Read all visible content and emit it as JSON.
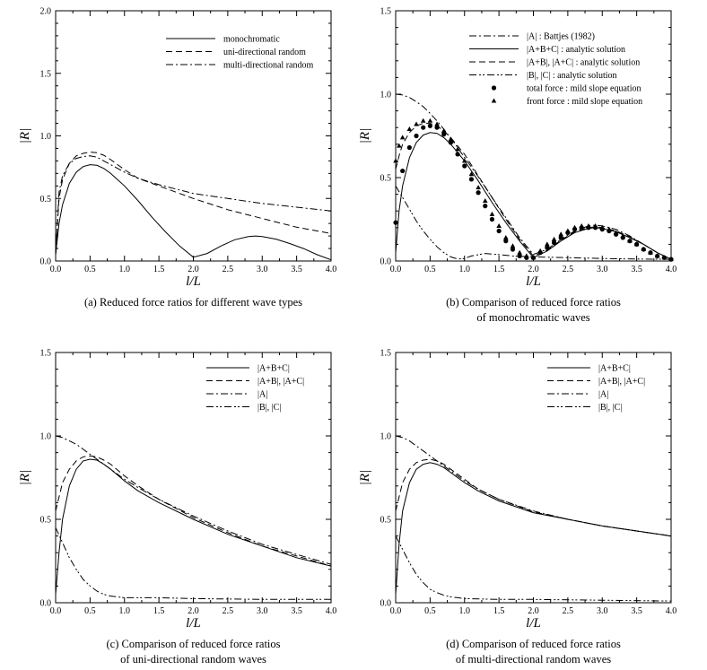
{
  "chart_data": [
    {
      "id": "a",
      "type": "line",
      "caption": [
        "(a) Reduced force ratios for different wave types"
      ],
      "xlabel": "l/L",
      "ylabel": "|R|",
      "xlim": [
        0,
        4
      ],
      "ylim": [
        0,
        2
      ],
      "xticks": [
        "0.0",
        "0.5",
        "1.0",
        "1.5",
        "2.0",
        "2.5",
        "3.0",
        "3.5",
        "4.0"
      ],
      "yticks": [
        "0.0",
        "0.5",
        "1.0",
        "1.5",
        "2.0"
      ],
      "series": [
        {
          "name": "monochromatic",
          "style": "solid",
          "x": [
            0,
            0.05,
            0.1,
            0.2,
            0.3,
            0.4,
            0.5,
            0.6,
            0.7,
            0.8,
            1.0,
            1.2,
            1.4,
            1.6,
            1.8,
            2.0,
            2.2,
            2.4,
            2.6,
            2.8,
            2.9,
            3.0,
            3.2,
            3.4,
            3.6,
            3.8,
            4.0
          ],
          "y": [
            0.05,
            0.3,
            0.45,
            0.62,
            0.71,
            0.755,
            0.77,
            0.765,
            0.74,
            0.7,
            0.6,
            0.48,
            0.35,
            0.23,
            0.12,
            0.03,
            0.06,
            0.12,
            0.17,
            0.195,
            0.2,
            0.195,
            0.175,
            0.14,
            0.1,
            0.05,
            0.01
          ]
        },
        {
          "name": "uni-directional random",
          "style": "dash",
          "x": [
            0,
            0.05,
            0.1,
            0.2,
            0.3,
            0.4,
            0.5,
            0.6,
            0.7,
            0.8,
            0.9,
            1.0,
            1.2,
            1.5,
            2.0,
            2.5,
            3.0,
            3.5,
            4.0
          ],
          "y": [
            0.05,
            0.5,
            0.65,
            0.78,
            0.84,
            0.86,
            0.87,
            0.865,
            0.845,
            0.81,
            0.77,
            0.73,
            0.66,
            0.6,
            0.5,
            0.41,
            0.34,
            0.27,
            0.22
          ]
        },
        {
          "name": "multi-directional random",
          "style": "dashdot",
          "x": [
            0,
            0.05,
            0.1,
            0.2,
            0.3,
            0.4,
            0.5,
            0.6,
            0.7,
            0.8,
            1.0,
            1.2,
            1.5,
            2.0,
            2.5,
            3.0,
            3.5,
            4.0
          ],
          "y": [
            0.05,
            0.55,
            0.68,
            0.78,
            0.82,
            0.835,
            0.84,
            0.83,
            0.8,
            0.77,
            0.71,
            0.66,
            0.61,
            0.54,
            0.5,
            0.46,
            0.43,
            0.4
          ]
        }
      ]
    },
    {
      "id": "b",
      "type": "line",
      "caption": [
        "(b) Comparison of reduced force ratios",
        "of monochromatic waves"
      ],
      "xlabel": "l/L",
      "ylabel": "|R|",
      "xlim": [
        0,
        4
      ],
      "ylim": [
        0,
        1.5
      ],
      "xticks": [
        "0.0",
        "0.5",
        "1.0",
        "1.5",
        "2.0",
        "2.5",
        "3.0",
        "3.5",
        "4.0"
      ],
      "yticks": [
        "0.0",
        "0.5",
        "1.0",
        "1.5"
      ],
      "series": [
        {
          "name": "|A| : Battjes (1982)",
          "style": "dashdot",
          "x": [
            0,
            0.1,
            0.2,
            0.3,
            0.4,
            0.5,
            0.6,
            0.7,
            0.8,
            0.9,
            1.0,
            1.2,
            1.4,
            1.6,
            1.8,
            2.0,
            2.2,
            2.4,
            2.6,
            2.8,
            2.9,
            3.0,
            3.2,
            3.4,
            3.6,
            3.8,
            4.0
          ],
          "y": [
            1.0,
            0.995,
            0.98,
            0.955,
            0.925,
            0.885,
            0.84,
            0.79,
            0.735,
            0.68,
            0.62,
            0.505,
            0.38,
            0.26,
            0.14,
            0.04,
            0.07,
            0.13,
            0.18,
            0.21,
            0.215,
            0.21,
            0.19,
            0.15,
            0.1,
            0.05,
            0.01
          ]
        },
        {
          "name": "|A+B+C| : analytic solution",
          "style": "solid",
          "x": [
            0,
            0.05,
            0.1,
            0.2,
            0.3,
            0.4,
            0.5,
            0.6,
            0.7,
            0.8,
            1.0,
            1.2,
            1.4,
            1.6,
            1.8,
            2.0,
            2.2,
            2.4,
            2.6,
            2.8,
            2.9,
            3.0,
            3.2,
            3.4,
            3.6,
            3.8,
            4.0
          ],
          "y": [
            0.05,
            0.3,
            0.45,
            0.62,
            0.71,
            0.755,
            0.77,
            0.765,
            0.74,
            0.7,
            0.6,
            0.48,
            0.35,
            0.23,
            0.12,
            0.02,
            0.06,
            0.12,
            0.17,
            0.195,
            0.2,
            0.195,
            0.175,
            0.14,
            0.1,
            0.05,
            0.01
          ]
        },
        {
          "name": "|A+B|, |A+C| : analytic solution",
          "style": "dash",
          "x": [
            0,
            0.05,
            0.1,
            0.2,
            0.3,
            0.4,
            0.5,
            0.6,
            0.7,
            0.8,
            1.0,
            1.2,
            1.4,
            1.6,
            1.8,
            2.0,
            2.2,
            2.4,
            2.6,
            2.8,
            2.9,
            3.0,
            3.2,
            3.4,
            3.6,
            3.8,
            4.0
          ],
          "y": [
            0.55,
            0.63,
            0.7,
            0.77,
            0.81,
            0.825,
            0.825,
            0.81,
            0.78,
            0.74,
            0.64,
            0.51,
            0.38,
            0.25,
            0.13,
            0.03,
            0.065,
            0.125,
            0.175,
            0.2,
            0.205,
            0.2,
            0.18,
            0.145,
            0.1,
            0.05,
            0.01
          ]
        },
        {
          "name": "|B|, |C| : analytic solution",
          "style": "dashdotdot",
          "x": [
            0,
            0.1,
            0.2,
            0.3,
            0.4,
            0.5,
            0.6,
            0.7,
            0.8,
            0.9,
            1.0,
            1.1,
            1.3,
            1.5,
            1.7,
            2.0,
            2.5,
            3.0,
            3.5,
            4.0
          ],
          "y": [
            0.45,
            0.38,
            0.31,
            0.24,
            0.18,
            0.13,
            0.085,
            0.05,
            0.025,
            0.012,
            0.015,
            0.03,
            0.045,
            0.038,
            0.03,
            0.025,
            0.02,
            0.015,
            0.012,
            0.01
          ]
        }
      ],
      "markers": [
        {
          "name": "total force : mild slope equation",
          "shape": "circle",
          "x": [
            0,
            0.1,
            0.2,
            0.3,
            0.4,
            0.5,
            0.6,
            0.7,
            0.8,
            0.9,
            1.0,
            1.1,
            1.2,
            1.3,
            1.4,
            1.5,
            1.6,
            1.7,
            1.8,
            1.9,
            2.0,
            2.1,
            2.2,
            2.3,
            2.4,
            2.5,
            2.6,
            2.7,
            2.8,
            2.9,
            3.0,
            3.1,
            3.2,
            3.3,
            3.4,
            3.5,
            3.6,
            3.7,
            3.8,
            3.9,
            4.0
          ],
          "y": [
            0.23,
            0.54,
            0.68,
            0.75,
            0.8,
            0.81,
            0.8,
            0.76,
            0.71,
            0.64,
            0.57,
            0.49,
            0.41,
            0.33,
            0.25,
            0.18,
            0.12,
            0.07,
            0.03,
            0.02,
            0.02,
            0.05,
            0.08,
            0.11,
            0.14,
            0.17,
            0.19,
            0.2,
            0.2,
            0.2,
            0.19,
            0.18,
            0.16,
            0.14,
            0.12,
            0.1,
            0.07,
            0.05,
            0.03,
            0.02,
            0.01
          ]
        },
        {
          "name": "front force : mild slope equation",
          "shape": "triangle",
          "x": [
            0,
            0.05,
            0.1,
            0.2,
            0.3,
            0.4,
            0.5,
            0.6,
            0.7,
            0.8,
            0.9,
            1.0,
            1.1,
            1.2,
            1.3,
            1.4,
            1.5,
            1.6,
            1.7,
            1.8,
            1.9,
            2.0,
            2.1,
            2.2,
            2.3,
            2.4,
            2.5,
            2.6,
            2.7,
            2.8,
            2.9,
            3.0,
            3.1,
            3.2,
            3.3,
            3.4,
            3.5,
            3.6,
            3.7,
            3.8,
            3.9,
            4.0
          ],
          "y": [
            0.6,
            0.69,
            0.74,
            0.79,
            0.82,
            0.84,
            0.84,
            0.82,
            0.78,
            0.73,
            0.67,
            0.6,
            0.52,
            0.44,
            0.36,
            0.28,
            0.21,
            0.14,
            0.09,
            0.05,
            0.03,
            0.02,
            0.06,
            0.1,
            0.13,
            0.16,
            0.18,
            0.2,
            0.21,
            0.21,
            0.21,
            0.2,
            0.19,
            0.17,
            0.15,
            0.12,
            0.1,
            0.07,
            0.05,
            0.03,
            0.02,
            0.01
          ]
        }
      ]
    },
    {
      "id": "c",
      "type": "line",
      "caption": [
        "(c) Comparison of reduced force ratios",
        "of uni-directional random waves"
      ],
      "xlabel": "l/L",
      "ylabel": "|R|",
      "xlim": [
        0,
        4
      ],
      "ylim": [
        0,
        1.5
      ],
      "xticks": [
        "0.0",
        "0.5",
        "1.0",
        "1.5",
        "2.0",
        "2.5",
        "3.0",
        "3.5",
        "4.0"
      ],
      "yticks": [
        "0.0",
        "0.5",
        "1.0",
        "1.5"
      ],
      "series": [
        {
          "name": "|A+B+C|",
          "style": "solid",
          "x": [
            0,
            0.05,
            0.1,
            0.2,
            0.3,
            0.4,
            0.5,
            0.6,
            0.7,
            0.8,
            1.0,
            1.2,
            1.5,
            2.0,
            2.5,
            3.0,
            3.5,
            4.0
          ],
          "y": [
            0.05,
            0.3,
            0.5,
            0.7,
            0.8,
            0.85,
            0.86,
            0.855,
            0.83,
            0.8,
            0.73,
            0.67,
            0.6,
            0.5,
            0.41,
            0.34,
            0.27,
            0.22
          ]
        },
        {
          "name": "|A+B|, |A+C|",
          "style": "dash",
          "x": [
            0,
            0.1,
            0.2,
            0.3,
            0.4,
            0.5,
            0.6,
            0.7,
            0.8,
            1.0,
            1.2,
            1.5,
            2.0,
            2.5,
            3.0,
            3.5,
            4.0
          ],
          "y": [
            0.55,
            0.72,
            0.8,
            0.85,
            0.875,
            0.88,
            0.875,
            0.855,
            0.83,
            0.76,
            0.7,
            0.62,
            0.51,
            0.42,
            0.34,
            0.28,
            0.22
          ]
        },
        {
          "name": "|A|",
          "style": "dashdot",
          "x": [
            0,
            0.1,
            0.2,
            0.3,
            0.4,
            0.5,
            0.6,
            0.7,
            0.8,
            1.0,
            1.2,
            1.5,
            2.0,
            2.5,
            3.0,
            3.5,
            4.0
          ],
          "y": [
            1.0,
            0.99,
            0.97,
            0.95,
            0.92,
            0.89,
            0.86,
            0.83,
            0.8,
            0.74,
            0.69,
            0.62,
            0.52,
            0.43,
            0.35,
            0.29,
            0.23
          ]
        },
        {
          "name": "|B|, |C|",
          "style": "dashdotdot",
          "x": [
            0,
            0.1,
            0.2,
            0.3,
            0.4,
            0.5,
            0.6,
            0.7,
            0.8,
            0.9,
            1.0,
            1.5,
            2.0,
            3.0,
            4.0
          ],
          "y": [
            0.45,
            0.36,
            0.27,
            0.2,
            0.14,
            0.1,
            0.07,
            0.05,
            0.04,
            0.035,
            0.03,
            0.03,
            0.025,
            0.02,
            0.02
          ]
        }
      ]
    },
    {
      "id": "d",
      "type": "line",
      "caption": [
        "(d) Comparison of reduced force ratios",
        "of multi-directional random waves"
      ],
      "xlabel": "l/L",
      "ylabel": "|R|",
      "xlim": [
        0,
        4
      ],
      "ylim": [
        0,
        1.5
      ],
      "xticks": [
        "0.0",
        "0.5",
        "1.0",
        "1.5",
        "2.0",
        "2.5",
        "3.0",
        "3.5",
        "4.0"
      ],
      "yticks": [
        "0.0",
        "0.5",
        "1.0",
        "1.5"
      ],
      "series": [
        {
          "name": "|A+B+C|",
          "style": "solid",
          "x": [
            0,
            0.05,
            0.1,
            0.2,
            0.3,
            0.4,
            0.5,
            0.6,
            0.7,
            0.8,
            1.0,
            1.2,
            1.5,
            2.0,
            2.5,
            3.0,
            3.5,
            4.0
          ],
          "y": [
            0.05,
            0.35,
            0.55,
            0.72,
            0.8,
            0.83,
            0.84,
            0.83,
            0.81,
            0.78,
            0.72,
            0.67,
            0.61,
            0.54,
            0.5,
            0.46,
            0.43,
            0.4
          ]
        },
        {
          "name": "|A+B|, |A+C|",
          "style": "dash",
          "x": [
            0,
            0.1,
            0.2,
            0.3,
            0.4,
            0.5,
            0.6,
            0.7,
            0.8,
            1.0,
            1.2,
            1.5,
            2.0,
            2.5,
            3.0,
            3.5,
            4.0
          ],
          "y": [
            0.55,
            0.72,
            0.8,
            0.84,
            0.855,
            0.86,
            0.85,
            0.83,
            0.8,
            0.74,
            0.68,
            0.62,
            0.545,
            0.5,
            0.46,
            0.43,
            0.4
          ]
        },
        {
          "name": "|A|",
          "style": "dashdot",
          "x": [
            0,
            0.1,
            0.2,
            0.3,
            0.4,
            0.5,
            0.6,
            0.7,
            0.8,
            1.0,
            1.2,
            1.5,
            2.0,
            2.5,
            3.0,
            3.5,
            4.0
          ],
          "y": [
            1.0,
            0.99,
            0.97,
            0.94,
            0.91,
            0.88,
            0.85,
            0.82,
            0.79,
            0.73,
            0.68,
            0.62,
            0.55,
            0.5,
            0.46,
            0.43,
            0.4
          ]
        },
        {
          "name": "|B|, |C|",
          "style": "dashdotdot",
          "x": [
            0,
            0.1,
            0.2,
            0.3,
            0.4,
            0.5,
            0.6,
            0.7,
            0.8,
            0.9,
            1.0,
            1.5,
            2.0,
            3.0,
            4.0
          ],
          "y": [
            0.4,
            0.32,
            0.24,
            0.17,
            0.12,
            0.08,
            0.06,
            0.045,
            0.035,
            0.03,
            0.025,
            0.02,
            0.02,
            0.015,
            0.01
          ]
        }
      ]
    }
  ]
}
